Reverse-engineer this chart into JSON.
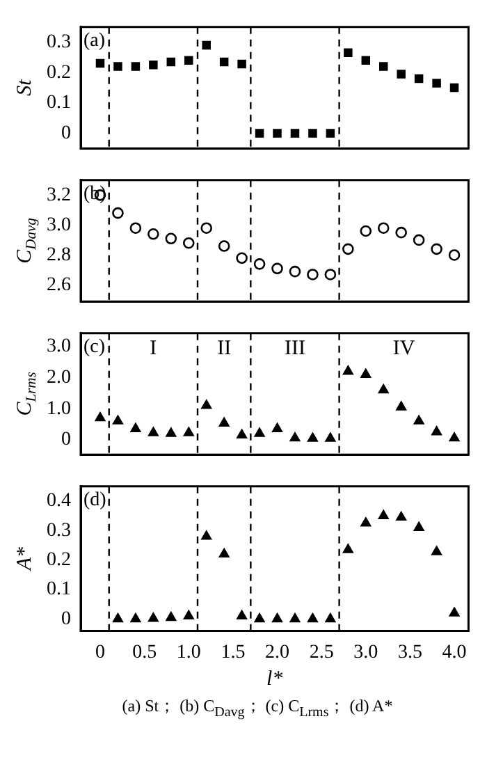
{
  "chart_data": [
    {
      "type": "scatter",
      "ylabel": "St",
      "marker": "square",
      "annotations": [
        "(a)"
      ],
      "xlim": [
        -0.22,
        4.16
      ],
      "ylim": [
        -0.05,
        0.35
      ],
      "yticks": [
        0,
        0.1,
        0.2,
        0.3
      ],
      "tick_labels": "y",
      "grid": false,
      "legend": false,
      "ref_lines": [
        {
          "axis": "x",
          "value": 0.1,
          "color": "#000000",
          "line_style": "dashed"
        },
        {
          "axis": "x",
          "value": 1.1,
          "color": "#000000",
          "line_style": "dashed"
        },
        {
          "axis": "x",
          "value": 1.7,
          "color": "#000000",
          "line_style": "dashed"
        },
        {
          "axis": "x",
          "value": 2.7,
          "color": "#000000",
          "line_style": "dashed"
        }
      ],
      "series": [
        {
          "color": "#000000",
          "x": [
            0,
            0.2,
            0.4,
            0.6,
            0.8,
            1.0,
            1.2,
            1.4,
            1.6,
            1.8,
            2.0,
            2.2,
            2.4,
            2.6,
            2.8,
            3.0,
            3.2,
            3.4,
            3.6,
            3.8,
            4.0
          ],
          "values": [
            0.23,
            0.22,
            0.22,
            0.225,
            0.235,
            0.24,
            0.29,
            0.235,
            0.228,
            0,
            0,
            0,
            0,
            0,
            0.265,
            0.24,
            0.22,
            0.195,
            0.18,
            0.165,
            0.15
          ]
        }
      ]
    },
    {
      "type": "scatter",
      "ylabel": "C$_{Davg}$",
      "marker": "circle",
      "annotations": [
        "(b)"
      ],
      "xlim": [
        -0.22,
        4.16
      ],
      "ylim": [
        2.49,
        3.3
      ],
      "yticks": [
        2.6,
        2.8,
        {
          "value": 3,
          "label": "3.0"
        },
        3.2
      ],
      "tick_labels": "y",
      "grid": false,
      "legend": false,
      "ref_lines": [
        {
          "axis": "x",
          "value": 0.1,
          "color": "#000000",
          "line_style": "dashed"
        },
        {
          "axis": "x",
          "value": 1.1,
          "color": "#000000",
          "line_style": "dashed"
        },
        {
          "axis": "x",
          "value": 1.7,
          "color": "#000000",
          "line_style": "dashed"
        },
        {
          "axis": "x",
          "value": 2.7,
          "color": "#000000",
          "line_style": "dashed"
        }
      ],
      "series": [
        {
          "color": "#000000",
          "x": [
            0,
            0.2,
            0.4,
            0.6,
            0.8,
            1.0,
            1.2,
            1.4,
            1.6,
            1.8,
            2.0,
            2.2,
            2.4,
            2.6,
            2.8,
            3.0,
            3.2,
            3.4,
            3.6,
            3.8,
            4.0
          ],
          "values": [
            3.2,
            3.08,
            2.98,
            2.94,
            2.91,
            2.88,
            2.98,
            2.86,
            2.78,
            2.74,
            2.71,
            2.69,
            2.67,
            2.67,
            2.84,
            2.96,
            2.98,
            2.95,
            2.9,
            2.84,
            2.8
          ]
        }
      ]
    },
    {
      "type": "scatter",
      "ylabel": "C$_{Lrms}$",
      "marker": "triangle",
      "annotations": [
        "(c)",
        "I",
        "II",
        "III",
        "IV"
      ],
      "xlim": [
        -0.22,
        4.16
      ],
      "ylim": [
        -0.48,
        3.43
      ],
      "yticks": [
        0,
        {
          "value": 1,
          "label": "1.0"
        },
        {
          "value": 2,
          "label": "2.0"
        },
        {
          "value": 3,
          "label": "3.0"
        }
      ],
      "tick_labels": "y",
      "grid": false,
      "legend": false,
      "ref_lines": [
        {
          "axis": "x",
          "value": 0.1,
          "color": "#000000",
          "line_style": "dashed"
        },
        {
          "axis": "x",
          "value": 1.1,
          "color": "#000000",
          "line_style": "dashed"
        },
        {
          "axis": "x",
          "value": 1.7,
          "color": "#000000",
          "line_style": "dashed"
        },
        {
          "axis": "x",
          "value": 2.7,
          "color": "#000000",
          "line_style": "dashed"
        }
      ],
      "series": [
        {
          "color": "#000000",
          "x": [
            0,
            0.2,
            0.4,
            0.6,
            0.8,
            1.0,
            1.2,
            1.4,
            1.6,
            1.8,
            2.0,
            2.2,
            2.4,
            2.6,
            2.8,
            3.0,
            3.2,
            3.4,
            3.6,
            3.8,
            4.0
          ],
          "values": [
            0.7,
            0.6,
            0.35,
            0.22,
            0.2,
            0.22,
            1.1,
            0.53,
            0.15,
            0.2,
            0.35,
            0.05,
            0.04,
            0.04,
            2.2,
            2.1,
            1.6,
            1.05,
            0.6,
            0.25,
            0.05
          ]
        }
      ]
    },
    {
      "type": "scatter",
      "ylabel": "A*",
      "xlabel": "l*",
      "marker": "triangle",
      "annotations": [
        "(d)"
      ],
      "xlim": [
        -0.22,
        4.16
      ],
      "xticks": [
        0,
        0.5,
        {
          "value": 1,
          "label": "1.0"
        },
        1.5,
        {
          "value": 2,
          "label": "2.0"
        },
        2.5,
        {
          "value": 3,
          "label": "3.0"
        },
        3.5,
        {
          "value": 4,
          "label": "4.0"
        }
      ],
      "ylim": [
        -0.04,
        0.45
      ],
      "yticks": [
        0,
        0.1,
        0.2,
        0.3,
        0.4
      ],
      "grid": false,
      "legend": false,
      "ref_lines": [
        {
          "axis": "x",
          "value": 0.1,
          "color": "#000000",
          "line_style": "dashed"
        },
        {
          "axis": "x",
          "value": 1.1,
          "color": "#000000",
          "line_style": "dashed"
        },
        {
          "axis": "x",
          "value": 1.7,
          "color": "#000000",
          "line_style": "dashed"
        },
        {
          "axis": "x",
          "value": 2.7,
          "color": "#000000",
          "line_style": "dashed"
        }
      ],
      "series": [
        {
          "color": "#000000",
          "x": [
            0.2,
            0.4,
            0.6,
            0.8,
            1.0,
            1.2,
            1.4,
            1.6,
            1.8,
            2.0,
            2.2,
            2.4,
            2.6,
            2.8,
            3.0,
            3.2,
            3.4,
            3.6,
            3.8,
            4.0
          ],
          "values": [
            0,
            0,
            0.002,
            0.005,
            0.01,
            0.28,
            0.22,
            0.01,
            0,
            0,
            0,
            0,
            0,
            0.235,
            0.325,
            0.35,
            0.345,
            0.31,
            0.228,
            0.02
          ]
        }
      ]
    },
    {
      "type": "other",
      "annotations": [
        "(a) St； (b) C$_{Davg}$； (c) C$_{Lrms}$； (d) A*"
      ]
    }
  ]
}
